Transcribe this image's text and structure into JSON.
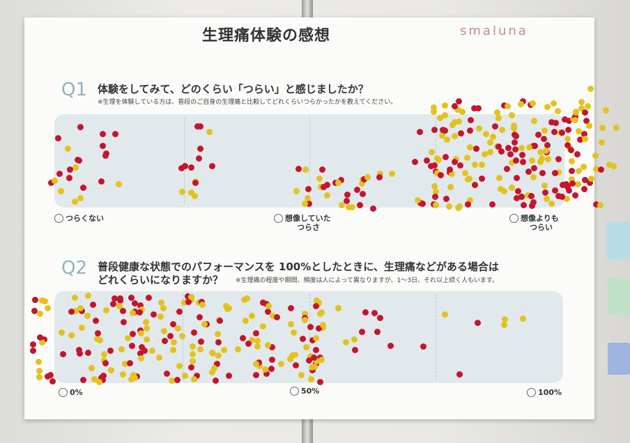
{
  "title": "生理痛体験の感想",
  "logo_text": "smaluna",
  "q1": {
    "number": "Q1",
    "question": "体験をしてみて、どのくらい「つらい」と感じましたか？",
    "note": "※生理を体験している方は、普段のご自身の生理痛と比較してどれくらいつらかったかを教えてください。",
    "scale": [
      {
        "icon": "neutral-face-icon",
        "label": "つらくない"
      },
      {
        "icon": "frown-face-icon",
        "label_line1": "想像していた",
        "label_line2": "つらさ"
      },
      {
        "icon": "sad-face-icon",
        "label_line1": "想像よりも",
        "label_line2": "つらい"
      }
    ]
  },
  "q2": {
    "number": "Q2",
    "question_line1": "普段健康な状態でのパフォーマンスを 100%としたときに、生理痛などがある場合は",
    "question_line2": "どれくらいになりますか？",
    "note": "※生理痛の程度や期間、頻度は人によって異なりますが、1〜3日、それ以上続く人もいます。",
    "scale": [
      {
        "icon": "crying-face-icon",
        "label": "0%"
      },
      {
        "icon": "neutral-face-icon",
        "label": "50%"
      },
      {
        "icon": "smile-face-icon",
        "label": "100%"
      }
    ]
  },
  "colors": {
    "sticker_yellow": "#e3c21c",
    "sticker_red": "#c5142c",
    "band": "#e2e9ec",
    "q_number": "#8fb3bd",
    "logo": "#c88d8a"
  }
}
